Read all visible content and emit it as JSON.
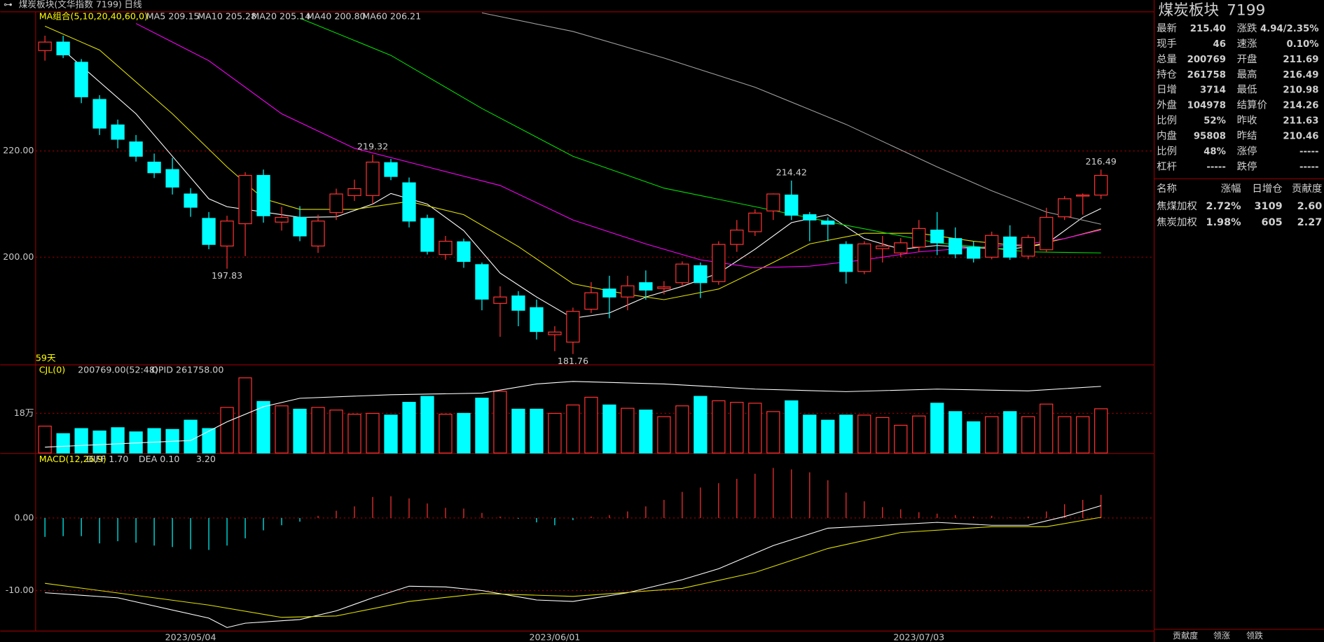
{
  "header": {
    "title": "煤炭板块(文华指数 7199)",
    "period": "日线"
  },
  "days_label": "59天",
  "chart_data": [
    {
      "type": "candlestick",
      "ylim": [
        179.8,
        246.2
      ],
      "yticks": [
        {
          "value": 220,
          "label": "220.00"
        },
        {
          "value": 200,
          "label": "200.00"
        }
      ],
      "grid": true,
      "up_color": "#ff3232",
      "down_color": "#00ffff",
      "categories": [
        null,
        null,
        null,
        null,
        null,
        null,
        null,
        null,
        "2023/05/04",
        null,
        null,
        null,
        null,
        null,
        null,
        null,
        null,
        null,
        null,
        null,
        null,
        null,
        null,
        null,
        null,
        null,
        null,
        null,
        "2023/06/01",
        null,
        null,
        null,
        null,
        null,
        null,
        null,
        null,
        null,
        null,
        null,
        null,
        null,
        null,
        null,
        null,
        null,
        null,
        null,
        "2023/07/03",
        null,
        null,
        null,
        null,
        null,
        null,
        null,
        null,
        null,
        null
      ],
      "open": [
        238.9,
        240.5,
        236.7,
        229.7,
        224.9,
        221.7,
        217.9,
        216.5,
        211.9,
        207.3,
        202.1,
        206.3,
        215.4,
        206.6,
        207.5,
        202.1,
        208.4,
        211.6,
        211.6,
        217.8,
        214,
        207.3,
        200.5,
        202.9,
        198.6,
        191.3,
        192.7,
        190.5,
        185.4,
        184,
        190.2,
        194,
        192.5,
        195.2,
        194.1,
        195.2,
        198.4,
        195.4,
        202.4,
        204.8,
        208.7,
        211.7,
        208,
        206.8,
        202.4,
        197.3,
        201.6,
        200.8,
        201.9,
        205.1,
        203.5,
        201.9,
        200,
        203.8,
        200.2,
        201.4,
        207.6,
        211.5,
        211.69
      ],
      "high": [
        241.7,
        241.7,
        237.3,
        230.5,
        225.9,
        223,
        219.5,
        218.7,
        213,
        208.5,
        207.8,
        216,
        216.5,
        209.5,
        209.6,
        208,
        212.9,
        214.6,
        219.32,
        218.5,
        215,
        208,
        204,
        203.5,
        199,
        194.5,
        193.6,
        192,
        187,
        190.5,
        195.3,
        196.5,
        196.5,
        197.5,
        195.5,
        199.2,
        199,
        203,
        207,
        209,
        212,
        214.42,
        208.5,
        207.5,
        203,
        203,
        204,
        203.6,
        207,
        208.5,
        205.6,
        203,
        204.8,
        206,
        204.2,
        209.3,
        211.5,
        212,
        216.49
      ],
      "low": [
        237,
        237.5,
        229,
        223,
        220.5,
        218,
        214.9,
        211.8,
        207.6,
        201.5,
        197.83,
        200.2,
        206.5,
        205,
        203,
        200.8,
        207,
        210.6,
        210,
        214.5,
        205.6,
        200.5,
        199.5,
        198,
        190,
        185,
        187,
        184.5,
        182.3,
        181.76,
        189.5,
        188.5,
        190,
        192,
        193,
        194.5,
        192.3,
        194.8,
        201,
        204,
        207,
        207,
        203,
        203,
        195,
        196.8,
        199,
        200,
        201,
        200.4,
        199.8,
        199,
        199.6,
        199.5,
        199.6,
        201,
        207,
        208,
        210.98
      ],
      "close": [
        240.5,
        238.1,
        230.2,
        224.3,
        222.2,
        219,
        215.9,
        213.2,
        209.4,
        202.4,
        206.8,
        215.4,
        207.8,
        207.5,
        204,
        206.8,
        211.9,
        212.9,
        217.9,
        215.2,
        206.8,
        201.1,
        203,
        199.2,
        192.1,
        192.5,
        190,
        186,
        185.9,
        189.8,
        193.3,
        192.5,
        194.6,
        193.8,
        194.4,
        198.7,
        195.2,
        202.4,
        205.1,
        208.3,
        211.9,
        207.9,
        207,
        206.2,
        197.3,
        202.5,
        202.1,
        202.7,
        205.4,
        202.7,
        200.6,
        199.8,
        204.1,
        200,
        203.7,
        207.5,
        211,
        211.7,
        215.4
      ],
      "legend_title": "MA组合(5,10,20,40,60,0)",
      "series": [
        {
          "name": "MA5",
          "label": "MA5 209.15",
          "color": "#ffffff",
          "x": [
            1,
            3,
            5,
            7,
            9,
            10,
            12,
            14,
            16,
            18,
            19,
            21,
            23,
            25,
            27,
            29,
            31,
            33,
            35,
            37,
            39,
            41,
            43,
            45,
            47,
            49,
            51,
            53,
            55,
            57,
            58
          ],
          "values": [
            239,
            233,
            227,
            219,
            211,
            209.5,
            208.5,
            207.5,
            207.6,
            210,
            212,
            210,
            205,
            197,
            192.5,
            188.5,
            189.5,
            192.5,
            194.5,
            197,
            201.5,
            206.5,
            208,
            203.5,
            201.5,
            202.2,
            201.8,
            201.5,
            202.5,
            207.5,
            209.15
          ]
        },
        {
          "name": "MA10",
          "label": "MA10 205.28",
          "color": "#e0e000",
          "x": [
            0,
            3,
            7,
            10,
            12,
            14,
            17,
            20,
            23,
            26,
            29,
            32,
            34,
            37,
            40,
            42,
            45,
            48,
            51,
            54,
            56,
            58
          ],
          "values": [
            243.5,
            239,
            227,
            217,
            211,
            209,
            209,
            210.5,
            208,
            202,
            195,
            193,
            192,
            194,
            199,
            202.5,
            204.5,
            204.5,
            203,
            202,
            203.5,
            205.28
          ]
        },
        {
          "name": "MA20",
          "label": "MA20 205.14",
          "color": "#ff00ff",
          "x": [
            5,
            9,
            13,
            17,
            21,
            25,
            29,
            33,
            36,
            39,
            42,
            45,
            48,
            51,
            54,
            56,
            58
          ],
          "values": [
            244,
            237,
            227,
            220.5,
            217,
            213.5,
            207,
            202.5,
            199.5,
            198,
            198.3,
            199.5,
            201,
            201.8,
            202.5,
            203.5,
            205.14
          ]
        },
        {
          "name": "MA40",
          "label": "MA40 200.80",
          "color": "#00e000",
          "x": [
            14,
            19,
            24,
            29,
            34,
            39,
            44,
            49,
            54,
            58
          ],
          "values": [
            245,
            238,
            228,
            219,
            213,
            209.5,
            206,
            202.7,
            201,
            200.8
          ]
        },
        {
          "name": "MA60",
          "label": "MA60 206.21",
          "color": "#a0a0a0",
          "x": [
            24,
            29,
            34,
            39,
            44,
            49,
            52,
            55,
            58
          ],
          "values": [
            246,
            242.5,
            237.5,
            232,
            225,
            217,
            212.5,
            208.5,
            206.21
          ]
        }
      ]
    },
    {
      "type": "bar",
      "title": "CJL(0)",
      "legend": "200769.00(52:48)",
      "ylim": [
        0,
        398000
      ],
      "yticks": [
        {
          "value": 180000,
          "label": "18万"
        }
      ],
      "grid": true,
      "values": [
        122000,
        88000,
        111000,
        100000,
        115000,
        96000,
        111000,
        107000,
        149000,
        111000,
        207000,
        341000,
        234000,
        214000,
        199000,
        207000,
        195000,
        176000,
        180000,
        172000,
        230000,
        257000,
        176000,
        180000,
        249000,
        280000,
        199000,
        199000,
        180000,
        218000,
        253000,
        218000,
        203000,
        195000,
        165000,
        214000,
        257000,
        237000,
        230000,
        226000,
        188000,
        237000,
        172000,
        149000,
        172000,
        172000,
        161000,
        126000,
        168000,
        226000,
        188000,
        142000,
        165000,
        188000,
        165000,
        222000,
        165000,
        165000,
        200769
      ],
      "series": [
        {
          "name": "OPID",
          "label": "OPID 261758.00",
          "color": "#ffffff",
          "ylim": [
            235700,
            270000
          ],
          "x": [
            0,
            8,
            10,
            12,
            14,
            19,
            24,
            27,
            29,
            34,
            39,
            44,
            49,
            54,
            58
          ],
          "values": [
            238000,
            240600,
            247900,
            253800,
            257100,
            258500,
            259100,
            262700,
            263700,
            262700,
            260700,
            259700,
            260700,
            260000,
            261758
          ]
        }
      ]
    },
    {
      "type": "macd",
      "title": "MACD(12,26,9)",
      "hist_label": "3.20",
      "ylim": [
        -15.58,
        8.84
      ],
      "yticks": [
        {
          "value": 0,
          "label": "0.00"
        },
        {
          "value": -10,
          "label": "-10.00"
        }
      ],
      "grid": true,
      "values": [
        -2.6,
        -2.5,
        -2.5,
        -3.5,
        -3.2,
        -3.4,
        -3.8,
        -4.0,
        -4.3,
        -4.4,
        -3.8,
        -2.8,
        -1.7,
        -1.0,
        -0.5,
        0.3,
        1.0,
        1.6,
        2.9,
        3.0,
        2.7,
        2.0,
        1.4,
        1.3,
        0.7,
        0.2,
        -0.1,
        -0.6,
        -1.0,
        -0.3,
        0.2,
        0.4,
        0.9,
        1.6,
        2.5,
        3.6,
        4.2,
        4.8,
        5.4,
        6.1,
        6.9,
        6.7,
        6.3,
        5.2,
        3.5,
        2.3,
        1.5,
        1.2,
        0.8,
        0.6,
        0.4,
        0.2,
        0.3,
        0.1,
        0.2,
        0.9,
        1.9,
        2.5,
        3.2
      ],
      "series": [
        {
          "name": "DIFF",
          "label": "DIFF 1.70",
          "color": "#ffffff",
          "x": [
            0,
            4,
            9,
            10,
            11,
            14,
            16,
            18,
            20,
            22,
            24,
            27,
            29,
            32,
            35,
            37,
            40,
            43,
            46,
            49,
            52,
            54,
            56,
            58
          ],
          "values": [
            -10.3,
            -11.0,
            -13.8,
            -15.1,
            -14.5,
            -14.0,
            -12.8,
            -11.0,
            -9.4,
            -9.5,
            -10.0,
            -11.3,
            -11.5,
            -10.3,
            -8.5,
            -7.0,
            -3.8,
            -1.4,
            -1.0,
            -0.6,
            -1.0,
            -1.0,
            0.2,
            1.7
          ]
        },
        {
          "name": "DEA",
          "label": "DEA 0.10",
          "color": "#e0e000",
          "x": [
            0,
            9,
            13,
            16,
            20,
            24,
            29,
            35,
            39,
            43,
            47,
            52,
            55,
            58
          ],
          "values": [
            -9.0,
            -12.0,
            -13.7,
            -13.5,
            -11.5,
            -10.4,
            -10.8,
            -9.7,
            -7.5,
            -4.2,
            -2.0,
            -1.2,
            -1.2,
            0.1
          ]
        }
      ]
    }
  ],
  "quote": {
    "name": "煤炭板块",
    "code": "7199",
    "rows": [
      [
        {
          "l": "最新",
          "v": "215.40",
          "c": "#ff3232"
        },
        {
          "l": "涨跌",
          "v": "4.94/2.35%",
          "c": "#ff3232"
        }
      ],
      [
        {
          "l": "现手",
          "v": "46",
          "c": "#ffff00"
        },
        {
          "l": "速涨",
          "v": "0.10%",
          "c": "#ff3232"
        }
      ],
      [
        {
          "l": "总量",
          "v": "200769",
          "c": "#ffff00"
        },
        {
          "l": "开盘",
          "v": "211.69",
          "c": "#ff3232"
        }
      ],
      [
        {
          "l": "持仓",
          "v": "261758",
          "c": "#ffff00"
        },
        {
          "l": "最高",
          "v": "216.49",
          "c": "#ff3232"
        }
      ],
      [
        {
          "l": "日增",
          "v": "3714",
          "c": "#ffff00"
        },
        {
          "l": "最低",
          "v": "210.98",
          "c": "#ff3232"
        }
      ],
      [
        {
          "l": "外盘",
          "v": "104978",
          "c": "#ffff00"
        },
        {
          "l": "结算价",
          "v": "214.26",
          "c": "#ff3232"
        }
      ],
      [
        {
          "l": "比例",
          "v": "52%",
          "c": "#ffff00"
        },
        {
          "l": "昨收",
          "v": "211.63",
          "c": "#ffffff"
        }
      ],
      [
        {
          "l": "内盘",
          "v": "95808",
          "c": "#ffff00"
        },
        {
          "l": "昨结",
          "v": "210.46",
          "c": "#ffffff"
        }
      ],
      [
        {
          "l": "比例",
          "v": "48%",
          "c": "#ffff00"
        },
        {
          "l": "涨停",
          "v": "-----",
          "c": "#ff3232"
        }
      ],
      [
        {
          "l": "杠杆",
          "v": "-----",
          "c": "#ffff00"
        },
        {
          "l": "跌停",
          "v": "-----",
          "c": "#00ff00"
        }
      ]
    ]
  },
  "contrib": {
    "columns": [
      "名称",
      "涨幅",
      "日增仓",
      "贡献度"
    ],
    "rows": [
      [
        "焦煤加权",
        "2.72%",
        "3109",
        "2.60"
      ],
      [
        "焦炭加权",
        "1.98%",
        "605",
        "2.27"
      ]
    ]
  },
  "tabs": [
    "贡献度",
    "领涨",
    "领跌"
  ]
}
